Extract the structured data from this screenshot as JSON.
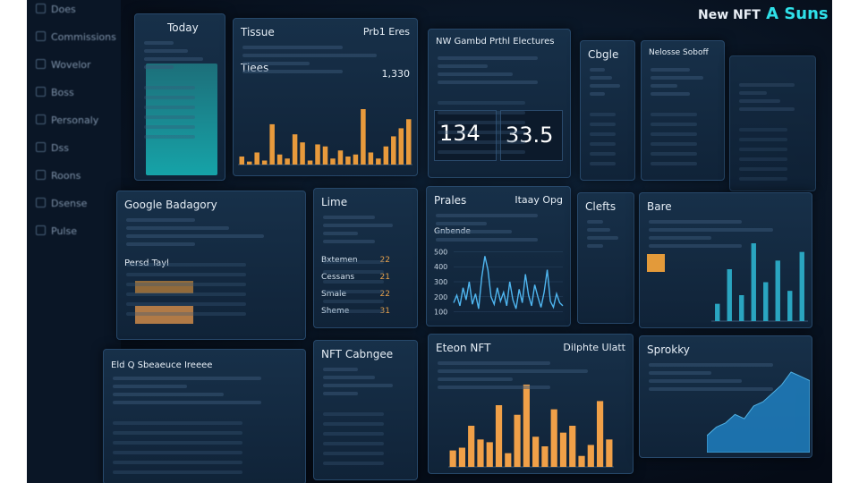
{
  "header": {
    "title": "New NFT",
    "highlight": "A Suns"
  },
  "sidebar": [
    "Does",
    "Commissions",
    "Wovelor",
    "Boss",
    "Personaly",
    "Dss",
    "Roons",
    "Dsense",
    "Pulse"
  ],
  "panels": {
    "today": {
      "title": "Today"
    },
    "tissue": {
      "title": "Tissue",
      "subtitle": "Prb1 Eres",
      "label": "Tiees",
      "value": "1,330",
      "bars": [
        8,
        3,
        12,
        4,
        40,
        10,
        6,
        30,
        22,
        4,
        20,
        18,
        6,
        14,
        8,
        10,
        55,
        12,
        6,
        18,
        28,
        36,
        45
      ]
    },
    "gambd": {
      "title": "NW Gambd Prthl Electures",
      "stat1": "134",
      "stat2": "33.5"
    },
    "cbgle": {
      "title": "Cbgle"
    },
    "nelosse": {
      "title": "Nelosse Soboff"
    },
    "google": {
      "title": "Google Badagory",
      "label": "Persd Tayl"
    },
    "lime": {
      "title": "Lime",
      "rows": [
        [
          "Bxtemen",
          "22"
        ],
        [
          "Cessans",
          "21"
        ],
        [
          "Smale",
          "22"
        ],
        [
          "Sheme",
          "31"
        ]
      ]
    },
    "prales": {
      "title": "Prales",
      "subtitle": "Itaay Opg",
      "legend": "Gnbende",
      "ylim": [
        50,
        550
      ],
      "yticks": [
        500,
        400,
        300,
        200,
        100
      ],
      "values": [
        160,
        210,
        140,
        260,
        180,
        300,
        150,
        220,
        120,
        330,
        470,
        380,
        200,
        150,
        260,
        170,
        230,
        140,
        300,
        180,
        120,
        250,
        160,
        350,
        210,
        140,
        280,
        200,
        130,
        230,
        380,
        170,
        130,
        220,
        160,
        140
      ]
    },
    "clefts": {
      "title": "Clefts"
    },
    "bare": {
      "title": "Bare",
      "bars": [
        20,
        60,
        30,
        90,
        45,
        70,
        35,
        80
      ]
    },
    "bottom": {
      "title": "Eld Q Sbeaeuce Ireeee"
    },
    "nft": {
      "title": "NFT Cabngee"
    },
    "eteon": {
      "title": "Eteon NFT",
      "subtitle": "Dilphte Ulatt",
      "bars": [
        12,
        14,
        30,
        20,
        18,
        45,
        10,
        38,
        60,
        22,
        15,
        42,
        25,
        30,
        8,
        16,
        48,
        20
      ]
    },
    "sprokky": {
      "title": "Sprokky",
      "values": [
        20,
        30,
        35,
        45,
        40,
        55,
        60,
        70,
        80,
        95,
        90,
        85
      ]
    }
  }
}
